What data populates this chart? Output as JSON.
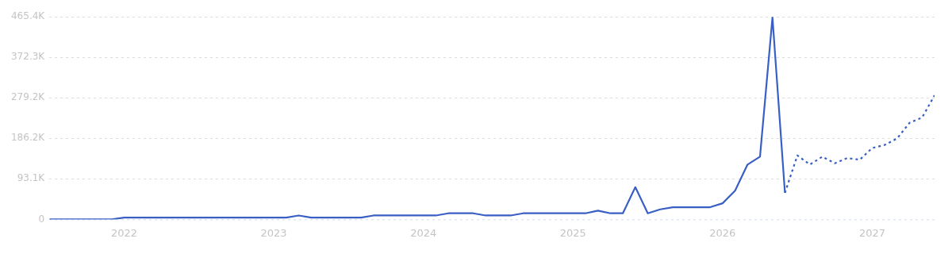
{
  "chart_data": {
    "type": "line",
    "xlim": [
      "2021-07",
      "2027-06"
    ],
    "ylim": [
      0,
      465400
    ],
    "xticks": [
      {
        "value": "2022-01",
        "label": "2022"
      },
      {
        "value": "2023-01",
        "label": "2023"
      },
      {
        "value": "2024-01",
        "label": "2024"
      },
      {
        "value": "2025-01",
        "label": "2025"
      },
      {
        "value": "2026-01",
        "label": "2026"
      },
      {
        "value": "2027-01",
        "label": "2027"
      }
    ],
    "yticks": [
      0,
      {
        "value": 93100,
        "label": "93.1K"
      },
      {
        "value": 186200,
        "label": "186.2K"
      },
      {
        "value": 279200,
        "label": "279.2K"
      },
      {
        "value": 372300,
        "label": "372.3K"
      },
      {
        "value": 465400,
        "label": "465.4K"
      }
    ],
    "grid": "y",
    "legend": false,
    "marker": "none",
    "series": [
      {
        "color": "#3a5fc4",
        "line_style": "solid",
        "x": [
          "2021-07",
          "2021-08",
          "2021-09",
          "2021-10",
          "2021-11",
          "2021-12",
          "2022-01",
          "2022-02",
          "2022-03",
          "2022-04",
          "2022-05",
          "2022-06",
          "2022-07",
          "2022-08",
          "2022-09",
          "2022-10",
          "2022-11",
          "2022-12",
          "2023-01",
          "2023-02",
          "2023-03",
          "2023-04",
          "2023-05",
          "2023-06",
          "2023-07",
          "2023-08",
          "2023-09",
          "2023-10",
          "2023-11",
          "2023-12",
          "2024-01",
          "2024-02",
          "2024-03",
          "2024-04",
          "2024-05",
          "2024-06",
          "2024-07",
          "2024-08",
          "2024-09",
          "2024-10",
          "2024-11",
          "2024-12",
          "2025-01",
          "2025-02",
          "2025-03",
          "2025-04",
          "2025-05",
          "2025-06",
          "2025-07",
          "2025-08",
          "2025-09",
          "2025-10",
          "2025-11",
          "2025-12",
          "2026-01",
          "2026-02",
          "2026-03",
          "2026-04",
          "2026-05",
          "2026-06"
        ],
        "values": [
          0,
          0,
          0,
          0,
          0,
          0,
          4000,
          4000,
          4000,
          4000,
          4000,
          4000,
          4000,
          4000,
          4000,
          4000,
          4000,
          4000,
          4000,
          4000,
          9000,
          4000,
          4000,
          4000,
          4000,
          4000,
          9000,
          9000,
          9000,
          9000,
          9000,
          9000,
          14000,
          14000,
          14000,
          9000,
          9000,
          9000,
          14000,
          14000,
          14000,
          14000,
          14000,
          14000,
          20000,
          14000,
          14000,
          74000,
          14000,
          23000,
          28000,
          28000,
          28000,
          28000,
          37000,
          66000,
          126000,
          144000,
          464000,
          61000
        ]
      },
      {
        "color": "#3a5fc4",
        "line_style": "dotted",
        "x": [
          "2026-06",
          "2026-07",
          "2026-08",
          "2026-09",
          "2026-10",
          "2026-11",
          "2026-12",
          "2027-01",
          "2027-02",
          "2027-03",
          "2027-04",
          "2027-05",
          "2027-06"
        ],
        "values": [
          61000,
          147000,
          126000,
          144000,
          129000,
          141000,
          137000,
          164000,
          171000,
          186000,
          222000,
          234000,
          285000
        ]
      }
    ]
  }
}
